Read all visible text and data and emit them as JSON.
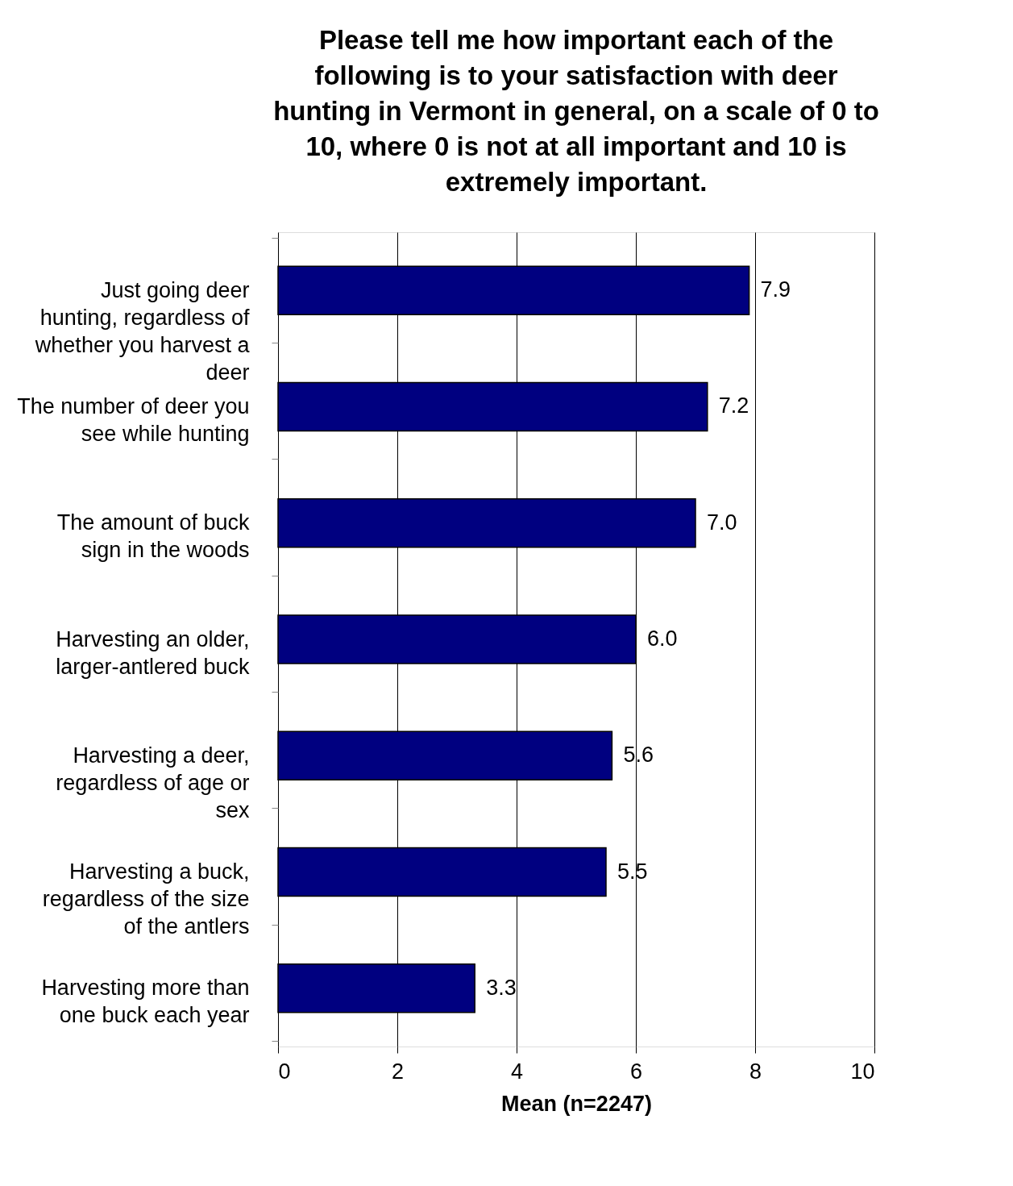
{
  "chart_data": {
    "type": "bar",
    "orientation": "horizontal",
    "title": "Please tell me how important each of the following is to your satisfaction with deer hunting in Vermont in general, on a scale of 0 to 10, where 0 is not at all important and 10 is extremely important.",
    "xlabel": "Mean (n=2247)",
    "categories": [
      "Just going deer hunting, regardless of whether you harvest a deer",
      "The number of deer you see while hunting",
      "The amount of buck sign in the woods",
      "Harvesting an older, larger-antlered buck",
      "Harvesting a deer, regardless of age or sex",
      "Harvesting a buck, regardless of the size of the antlers",
      "Harvesting more than one buck each year"
    ],
    "values": [
      7.9,
      7.2,
      7.0,
      6.0,
      5.6,
      5.5,
      3.3
    ],
    "value_labels": [
      "7.9",
      "7.2",
      "7.0",
      "6.0",
      "5.6",
      "5.5",
      "3.3"
    ],
    "color": "#000080",
    "xlim": [
      0,
      10
    ],
    "xticks": [
      0,
      2,
      4,
      6,
      8,
      10
    ],
    "grid": "x"
  }
}
